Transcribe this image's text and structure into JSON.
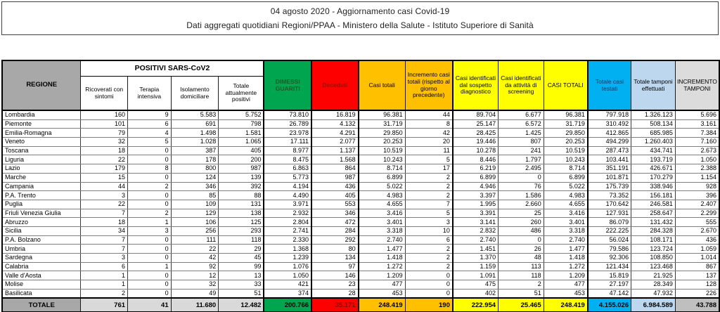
{
  "title": "04 agosto 2020 - Aggiornamento casi Covid-19",
  "subtitle": "Dati aggregati quotidiani Regioni/PPAA - Ministero della Salute - Istituto Superiore di Sanità",
  "colors": {
    "green": "#00A550",
    "green_text": "#1E5B2A",
    "red": "#FF0000",
    "red_text": "#8B1507",
    "orange": "#FFC000",
    "yellow": "#FFFF00",
    "cyan": "#00B0F0",
    "cyan_text": "#17375E",
    "light_blue": "#BDD7EE",
    "light_gray": "#DCDCDC",
    "header_gray": "#A8A8A8",
    "totale_gray": "#D9D9D9",
    "totale_last_gray": "#BFBFBF"
  },
  "table": {
    "region_header": "REGIONE",
    "group_header": "POSITIVI SARS-CoV2",
    "columns": [
      {
        "key": "ricoverati",
        "label": "Ricoverati con sintomi",
        "group": "positivi"
      },
      {
        "key": "terapia",
        "label": "Terapia intensiva",
        "group": "positivi"
      },
      {
        "key": "isolamento",
        "label": "Isolamento domiciliare",
        "group": "positivi"
      },
      {
        "key": "attualmente-positivi",
        "label": "Totale attualmente positivi",
        "group": "positivi"
      },
      {
        "key": "dimessi-guariti",
        "label": "DIMESSI GUARITI",
        "bg": "#00A550",
        "fg": "#1E5B2A",
        "bold": true,
        "thick": true
      },
      {
        "key": "deceduti",
        "label": "Deceduti",
        "bg": "#FF0000",
        "fg": "#8B1507",
        "bold": true,
        "thick": true,
        "totale_fg": "#7B1203"
      },
      {
        "key": "casi-totali",
        "label": "Casi totali",
        "bg": "#FFC000",
        "fg": "#000000",
        "thick": true
      },
      {
        "key": "incremento-casi",
        "label": "Incremento casi totali (rispetto al giorno precedente)",
        "bg": "#FFC000",
        "fg": "#000000"
      },
      {
        "key": "sospetto-diagnostico",
        "label": "Casi identificati dal sospetto diagnostico",
        "bg": "#FFFF00",
        "fg": "#000000",
        "thick": true
      },
      {
        "key": "screening",
        "label": "Casi identificati da attività di screening",
        "bg": "#FFFF00",
        "fg": "#000000"
      },
      {
        "key": "casi-totali-2",
        "label": "CASI TOTALI",
        "bg": "#FFFF00",
        "fg": "#000000"
      },
      {
        "key": "casi-testati",
        "label": "Totale casi testati",
        "bg": "#00B0F0",
        "fg": "#17375E",
        "thick": true
      },
      {
        "key": "tamponi-effettuati",
        "label": "Totale tamponi effettuati",
        "bg": "#BDD7EE",
        "fg": "#000000"
      },
      {
        "key": "incremento-tamponi",
        "label": "INCREMENTO TAMPONI",
        "bg": "#DCDCDC",
        "fg": "#000000",
        "totale_bg": "#BFBFBF"
      }
    ],
    "rows": [
      {
        "region": "Lombardia",
        "values": [
          "160",
          "9",
          "5.583",
          "5.752",
          "73.810",
          "16.819",
          "96.381",
          "44",
          "89.704",
          "6.677",
          "96.381",
          "797.918",
          "1.326.123",
          "5.696"
        ]
      },
      {
        "region": "Piemonte",
        "values": [
          "101",
          "6",
          "691",
          "798",
          "26.789",
          "4.132",
          "31.719",
          "8",
          "25.147",
          "6.572",
          "31.719",
          "310.492",
          "508.134",
          "3.161"
        ]
      },
      {
        "region": "Emilia-Romagna",
        "values": [
          "79",
          "4",
          "1.498",
          "1.581",
          "23.978",
          "4.291",
          "29.850",
          "42",
          "28.425",
          "1.425",
          "29.850",
          "412.865",
          "685.985",
          "7.384"
        ]
      },
      {
        "region": "Veneto",
        "values": [
          "32",
          "5",
          "1.028",
          "1.065",
          "17.111",
          "2.077",
          "20.253",
          "20",
          "19.446",
          "807",
          "20.253",
          "494.299",
          "1.260.403",
          "7.160"
        ]
      },
      {
        "region": "Toscana",
        "values": [
          "18",
          "0",
          "387",
          "405",
          "8.977",
          "1.137",
          "10.519",
          "11",
          "10.278",
          "241",
          "10.519",
          "287.473",
          "434.741",
          "2.673"
        ]
      },
      {
        "region": "Liguria",
        "values": [
          "22",
          "0",
          "178",
          "200",
          "8.475",
          "1.568",
          "10.243",
          "5",
          "8.446",
          "1.797",
          "10.243",
          "103.441",
          "193.719",
          "1.050"
        ]
      },
      {
        "region": "Lazio",
        "values": [
          "179",
          "8",
          "800",
          "987",
          "6.863",
          "864",
          "8.714",
          "17",
          "6.219",
          "2.495",
          "8.714",
          "351.191",
          "426.671",
          "2.388"
        ]
      },
      {
        "region": "Marche",
        "values": [
          "15",
          "0",
          "124",
          "139",
          "5.773",
          "987",
          "6.899",
          "2",
          "6.899",
          "0",
          "6.899",
          "101.871",
          "170.279",
          "1.154"
        ]
      },
      {
        "region": "Campania",
        "values": [
          "44",
          "2",
          "346",
          "392",
          "4.194",
          "436",
          "5.022",
          "2",
          "4.946",
          "76",
          "5.022",
          "175.739",
          "338.946",
          "928"
        ]
      },
      {
        "region": "P.A. Trento",
        "values": [
          "3",
          "0",
          "85",
          "88",
          "4.490",
          "405",
          "4.983",
          "2",
          "3.397",
          "1.586",
          "4.983",
          "73.352",
          "156.181",
          "396"
        ]
      },
      {
        "region": "Puglia",
        "values": [
          "22",
          "0",
          "109",
          "131",
          "3.971",
          "553",
          "4.655",
          "7",
          "1.995",
          "2.660",
          "4.655",
          "170.642",
          "246.581",
          "2.407"
        ]
      },
      {
        "region": "Friuli Venezia Giulia",
        "values": [
          "7",
          "2",
          "129",
          "138",
          "2.932",
          "346",
          "3.416",
          "5",
          "3.391",
          "25",
          "3.416",
          "127.931",
          "258.647",
          "2.299"
        ]
      },
      {
        "region": "Abruzzo",
        "values": [
          "18",
          "1",
          "106",
          "125",
          "2.804",
          "472",
          "3.401",
          "3",
          "3.141",
          "260",
          "3.401",
          "86.079",
          "131.432",
          "555"
        ]
      },
      {
        "region": "Sicilia",
        "values": [
          "34",
          "3",
          "256",
          "293",
          "2.741",
          "284",
          "3.318",
          "10",
          "2.832",
          "486",
          "3.318",
          "222.225",
          "284.328",
          "2.670"
        ]
      },
      {
        "region": "P.A. Bolzano",
        "values": [
          "7",
          "0",
          "111",
          "118",
          "2.330",
          "292",
          "2.740",
          "6",
          "2.740",
          "0",
          "2.740",
          "56.024",
          "108.171",
          "436"
        ]
      },
      {
        "region": "Umbria",
        "values": [
          "7",
          "0",
          "22",
          "29",
          "1.368",
          "80",
          "1.477",
          "2",
          "1.451",
          "26",
          "1.477",
          "79.586",
          "123.724",
          "1.059"
        ]
      },
      {
        "region": "Sardegna",
        "values": [
          "3",
          "0",
          "42",
          "45",
          "1.239",
          "134",
          "1.418",
          "2",
          "1.370",
          "48",
          "1.418",
          "92.306",
          "108.850",
          "1.014"
        ]
      },
      {
        "region": "Calabria",
        "values": [
          "6",
          "1",
          "92",
          "99",
          "1.076",
          "97",
          "1.272",
          "2",
          "1.159",
          "113",
          "1.272",
          "121.434",
          "123.468",
          "867"
        ]
      },
      {
        "region": "Valle d'Aosta",
        "values": [
          "1",
          "0",
          "12",
          "13",
          "1.050",
          "146",
          "1.209",
          "0",
          "1.091",
          "118",
          "1.209",
          "15.819",
          "21.925",
          "137"
        ]
      },
      {
        "region": "Molise",
        "values": [
          "1",
          "0",
          "32",
          "33",
          "421",
          "23",
          "477",
          "0",
          "475",
          "2",
          "477",
          "27.197",
          "28.349",
          "128"
        ]
      },
      {
        "region": "Basilicata",
        "values": [
          "2",
          "0",
          "49",
          "51",
          "374",
          "28",
          "453",
          "0",
          "402",
          "51",
          "453",
          "47.142",
          "47.932",
          "226"
        ]
      }
    ],
    "totale": {
      "label": "TOTALE",
      "values": [
        "761",
        "41",
        "11.680",
        "12.482",
        "200.766",
        "35.171",
        "248.419",
        "190",
        "222.954",
        "25.465",
        "248.419",
        "4.155.026",
        "6.984.589",
        "43.788"
      ]
    }
  }
}
